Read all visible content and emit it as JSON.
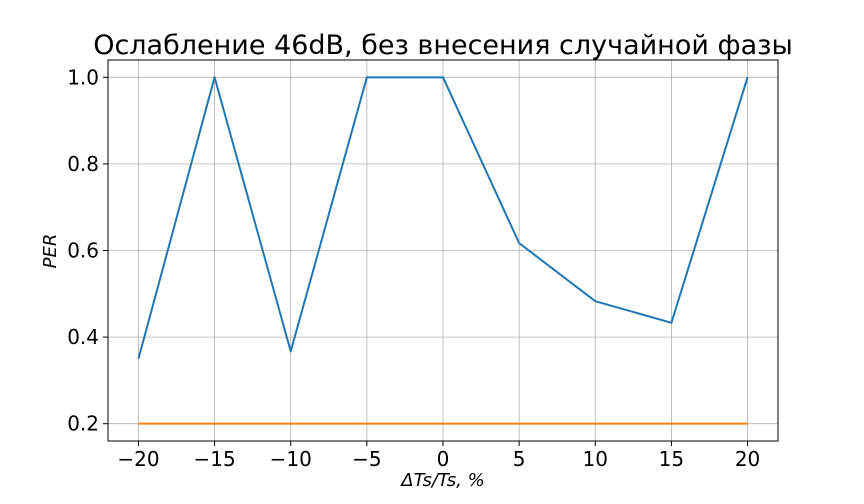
{
  "chart_data": {
    "type": "line",
    "title": "Ослабление 46dB, без внесения случайной фазы",
    "xlabel": "ΔTs/Ts, %",
    "ylabel": "PER",
    "x": [
      -20,
      -15,
      -10,
      -5,
      0,
      5,
      10,
      15,
      20
    ],
    "xticks": [
      "−20",
      "−15",
      "−10",
      "−5",
      "0",
      "5",
      "10",
      "15",
      "20"
    ],
    "yticks": [
      "0.2",
      "0.4",
      "0.6",
      "0.8",
      "1.0"
    ],
    "xlim": [
      -22,
      22
    ],
    "ylim": [
      0.16,
      1.04
    ],
    "grid": true,
    "series": [
      {
        "color": "#1f77b4",
        "values": [
          0.35,
          1.0,
          0.367,
          1.0,
          1.0,
          0.617,
          0.483,
          0.433,
          1.0
        ]
      },
      {
        "color": "#ff7f0e",
        "values": [
          0.2,
          0.2,
          0.2,
          0.2,
          0.2,
          0.2,
          0.2,
          0.2,
          0.2
        ]
      }
    ]
  }
}
